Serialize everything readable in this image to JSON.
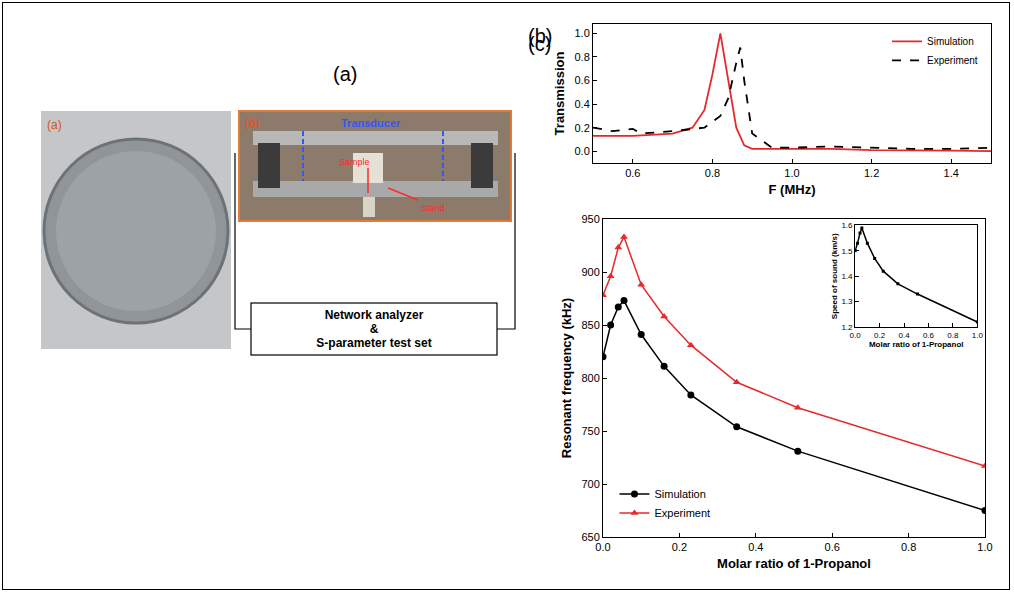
{
  "setup": {
    "title": "(a)",
    "photo_labels": [
      "(a)",
      "(b)"
    ],
    "photo_texts": [
      "Transducer",
      "Sample",
      "Stand"
    ],
    "box_lines": [
      "Network analyzer",
      "&",
      "S-parameter test set"
    ]
  },
  "chart_data": [
    {
      "type": "line",
      "title": "(b)",
      "x_label": "F (MHz)",
      "y_label": "Transmission",
      "xlim": [
        0.5,
        1.5
      ],
      "xticks": [
        0.6,
        0.8,
        {
          "value": 1.0,
          "label": "1.0"
        },
        1.2,
        1.4
      ],
      "ylim": [
        -0.1,
        1.08
      ],
      "yticks": [
        {
          "value": 0,
          "label": "0.0"
        },
        0.2,
        0.4,
        0.6,
        0.8,
        {
          "value": 1.0,
          "label": "1.0"
        }
      ],
      "legend": "top-right",
      "grid": false,
      "series": [
        {
          "name": "Simulation",
          "color": "#e8292b",
          "line_style": "solid",
          "x": [
            0.5,
            0.6,
            0.7,
            0.75,
            0.78,
            0.8,
            0.82,
            0.84,
            0.86,
            0.88,
            0.9,
            1.0,
            1.1,
            1.2,
            1.3,
            1.4,
            1.5
          ],
          "values": [
            0.13,
            0.13,
            0.15,
            0.2,
            0.35,
            0.65,
            1.0,
            0.6,
            0.2,
            0.05,
            0.02,
            0.02,
            0.02,
            0.01,
            0.01,
            0.005,
            0.0
          ]
        },
        {
          "name": "Experiment",
          "color": "#000000",
          "line_style": "dash",
          "x": [
            0.5,
            0.55,
            0.6,
            0.62,
            0.7,
            0.78,
            0.82,
            0.84,
            0.86,
            0.87,
            0.88,
            0.9,
            0.95,
            1.0,
            1.1,
            1.2,
            1.3,
            1.4,
            1.5
          ],
          "values": [
            0.2,
            0.17,
            0.19,
            0.15,
            0.17,
            0.2,
            0.3,
            0.45,
            0.75,
            0.88,
            0.6,
            0.15,
            0.03,
            0.03,
            0.04,
            0.03,
            0.02,
            0.02,
            0.03
          ]
        }
      ]
    },
    {
      "type": "line",
      "title": "(c)",
      "x_label": "Molar ratio of 1-Propanol",
      "y_label": "Resonant frequency (kHz)",
      "xlim": [
        0.0,
        1.0
      ],
      "xticks": [
        {
          "value": 0,
          "label": "0.0"
        },
        0.2,
        0.4,
        0.6,
        0.8,
        {
          "value": 1.0,
          "label": "1.0"
        }
      ],
      "ylim": [
        650,
        950
      ],
      "yticks": [
        650,
        700,
        750,
        800,
        850,
        900,
        950
      ],
      "legend": "bottom-left",
      "grid": false,
      "series": [
        {
          "name": "Simulation",
          "color": "#000000",
          "marker": "circle",
          "line_style": "solid",
          "x": [
            0,
            0.02,
            0.04,
            0.055,
            0.1,
            0.16,
            0.23,
            0.35,
            0.51,
            1.0
          ],
          "values": [
            820,
            850,
            867,
            873,
            841,
            811,
            784,
            754,
            731,
            675
          ]
        },
        {
          "name": "Experiment",
          "color": "#e8292b",
          "marker": "triangle-up",
          "line_style": "solid",
          "x": [
            0,
            0.02,
            0.04,
            0.055,
            0.1,
            0.16,
            0.23,
            0.35,
            0.51,
            1.0
          ],
          "values": [
            878,
            896,
            923,
            933,
            888,
            858,
            831,
            796,
            772,
            717
          ]
        }
      ]
    },
    {
      "type": "line",
      "x_label": "Molar ratio of 1-Propanol",
      "y_label": "Speed of sound (km/s)",
      "xlim": [
        0.0,
        1.0
      ],
      "xticks": [
        {
          "value": 0,
          "label": "0.0"
        },
        0.2,
        0.4,
        0.6,
        0.8,
        {
          "value": 1.0,
          "label": "1.0"
        }
      ],
      "ylim": [
        1.2,
        1.6
      ],
      "yticks": [
        1.2,
        1.3,
        1.4,
        1.5,
        1.6
      ],
      "grid": false,
      "series": [
        {
          "color": "#000000",
          "marker": "square",
          "line_style": "solid",
          "x": [
            0,
            0.02,
            0.04,
            0.055,
            0.1,
            0.16,
            0.23,
            0.35,
            0.51,
            1.0
          ],
          "values": [
            1.5,
            1.53,
            1.57,
            1.59,
            1.53,
            1.47,
            1.42,
            1.37,
            1.33,
            1.22
          ]
        }
      ]
    }
  ]
}
